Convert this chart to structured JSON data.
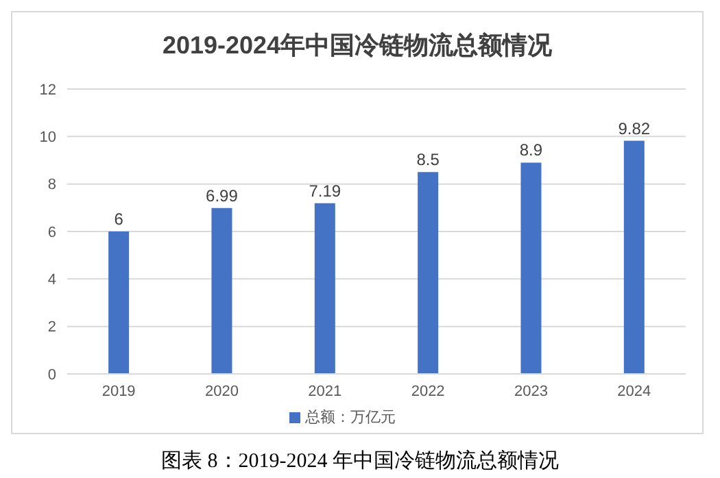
{
  "chart_data": {
    "type": "bar",
    "title": "2019-2024年中国冷链物流总额情况",
    "categories": [
      "2019",
      "2020",
      "2021",
      "2022",
      "2023",
      "2024"
    ],
    "series": [
      {
        "name": "总额：万亿元",
        "color": "#4472c4",
        "values": [
          6,
          6.99,
          7.19,
          8.5,
          8.9,
          9.82
        ]
      }
    ],
    "ylim": [
      0,
      12
    ],
    "yticks": [
      0,
      2,
      4,
      6,
      8,
      10,
      12
    ],
    "grid": "y",
    "legend": "bottom",
    "data_labels": true,
    "annotations": [
      "图表 8：2019-2024 年中国冷链物流总额情况"
    ]
  }
}
